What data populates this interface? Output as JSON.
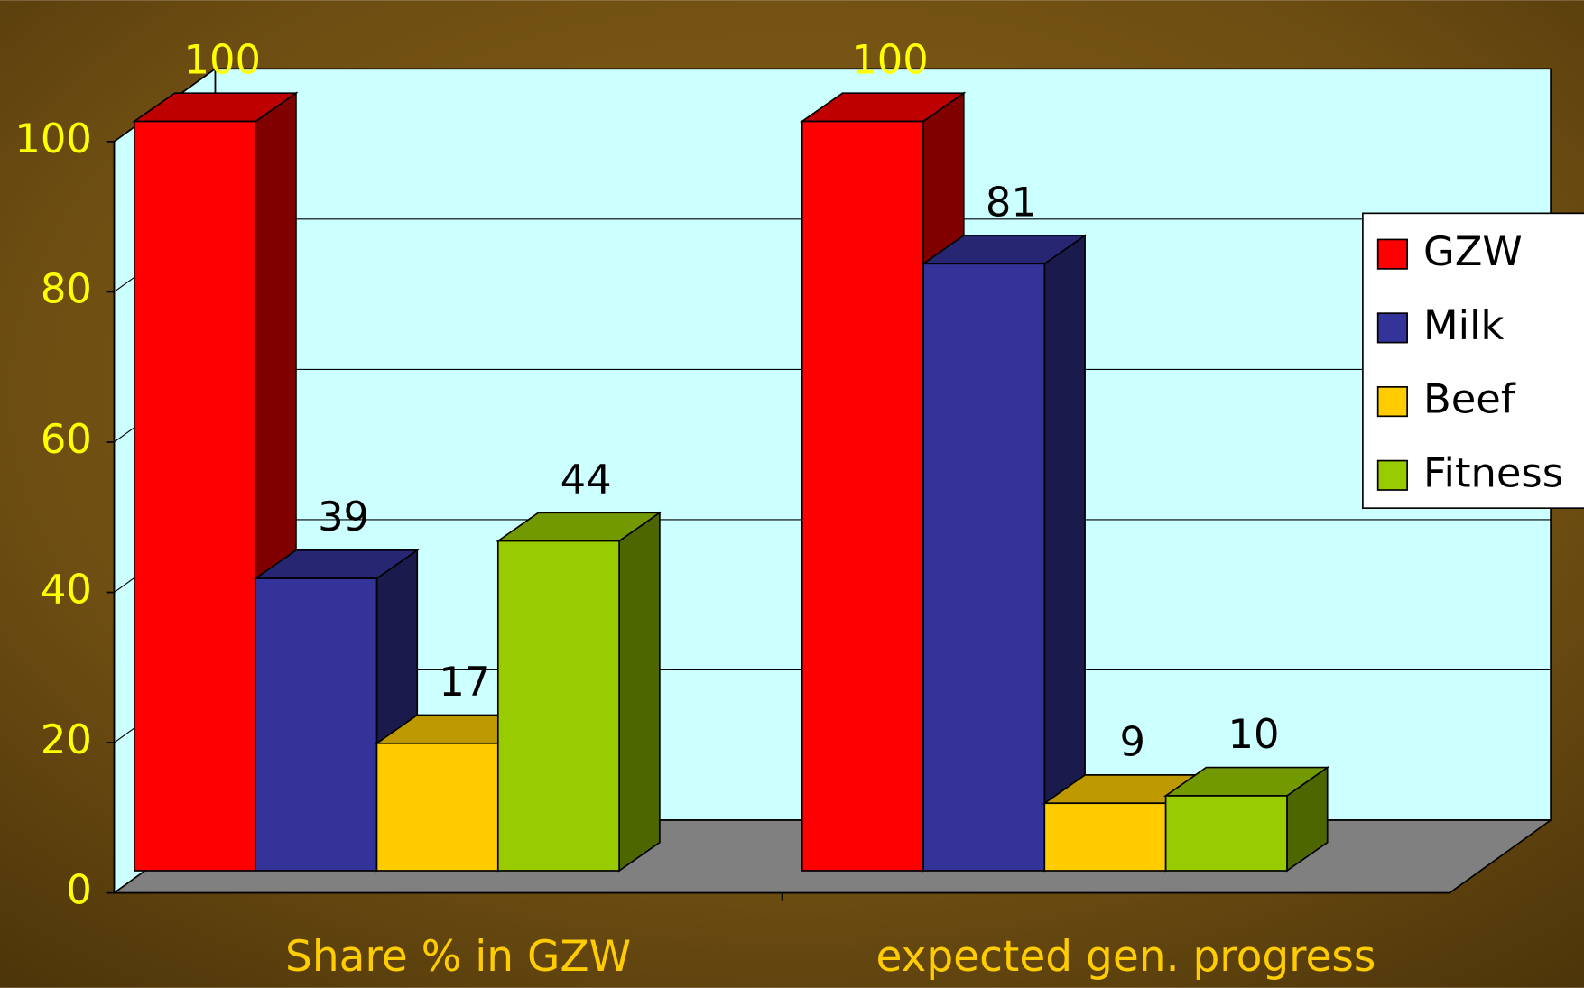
{
  "chart_data": {
    "type": "bar3d",
    "categories": [
      "Share % in GZW",
      "expected gen. progress"
    ],
    "series": [
      {
        "name": "GZW",
        "color": "#ff0000",
        "values": [
          100,
          100
        ]
      },
      {
        "name": "Milk",
        "color": "#333399",
        "values": [
          39,
          81
        ]
      },
      {
        "name": "Beef",
        "color": "#ffcc00",
        "values": [
          17,
          9
        ]
      },
      {
        "name": "Fitness",
        "color": "#99cc00",
        "values": [
          44,
          10
        ]
      }
    ],
    "ylim": [
      0,
      100
    ],
    "yticks": [
      0,
      20,
      40,
      60,
      80,
      100
    ],
    "grid": true,
    "legend": "right"
  }
}
